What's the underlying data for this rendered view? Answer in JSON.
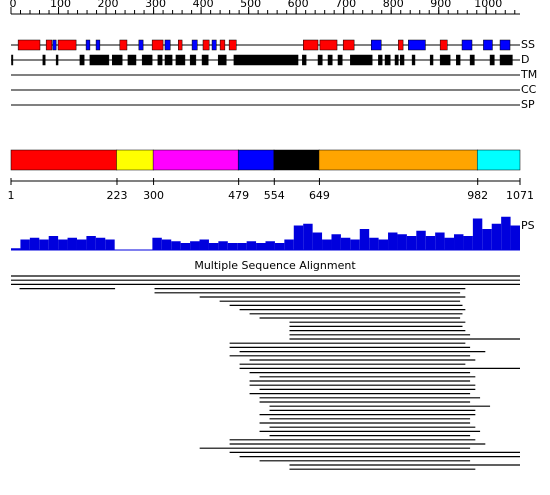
{
  "ruler": {
    "ticks": [
      0,
      100,
      200,
      300,
      400,
      500,
      600,
      700,
      800,
      900,
      1000
    ],
    "minor_step": 20
  },
  "tracks": [
    {
      "label": "SS",
      "segments": [
        {
          "start": 15,
          "end": 61,
          "color": "#ff0000"
        },
        {
          "start": 74,
          "end": 86,
          "color": "#ff0000"
        },
        {
          "start": 99,
          "end": 137,
          "color": "#ff0000"
        },
        {
          "start": 229,
          "end": 244,
          "color": "#ff0000"
        },
        {
          "start": 297,
          "end": 320,
          "color": "#ff0000"
        },
        {
          "start": 352,
          "end": 360,
          "color": "#ff0000"
        },
        {
          "start": 404,
          "end": 417,
          "color": "#ff0000"
        },
        {
          "start": 440,
          "end": 450,
          "color": "#ff0000"
        },
        {
          "start": 459,
          "end": 474,
          "color": "#ff0000"
        },
        {
          "start": 615,
          "end": 646,
          "color": "#ff0000"
        },
        {
          "start": 650,
          "end": 686,
          "color": "#ff0000"
        },
        {
          "start": 699,
          "end": 722,
          "color": "#ff0000"
        },
        {
          "start": 815,
          "end": 825,
          "color": "#ff0000"
        },
        {
          "start": 903,
          "end": 918,
          "color": "#ff0000"
        },
        {
          "start": 88,
          "end": 95,
          "color": "#0000ff"
        },
        {
          "start": 158,
          "end": 166,
          "color": "#0000ff"
        },
        {
          "start": 179,
          "end": 187,
          "color": "#0000ff"
        },
        {
          "start": 269,
          "end": 278,
          "color": "#0000ff"
        },
        {
          "start": 324,
          "end": 335,
          "color": "#0000ff"
        },
        {
          "start": 381,
          "end": 392,
          "color": "#0000ff"
        },
        {
          "start": 423,
          "end": 432,
          "color": "#0000ff"
        },
        {
          "start": 758,
          "end": 779,
          "color": "#0000ff"
        },
        {
          "start": 836,
          "end": 872,
          "color": "#0000ff"
        },
        {
          "start": 949,
          "end": 970,
          "color": "#0000ff"
        },
        {
          "start": 994,
          "end": 1013,
          "color": "#0000ff"
        },
        {
          "start": 1029,
          "end": 1050,
          "color": "#0000ff"
        }
      ]
    },
    {
      "label": "D",
      "segments": [
        {
          "start": 1,
          "end": 4,
          "color": "#000000"
        },
        {
          "start": 67,
          "end": 72,
          "color": "#000000"
        },
        {
          "start": 95,
          "end": 99,
          "color": "#000000"
        },
        {
          "start": 145,
          "end": 154,
          "color": "#000000"
        },
        {
          "start": 166,
          "end": 206,
          "color": "#000000"
        },
        {
          "start": 213,
          "end": 234,
          "color": "#000000"
        },
        {
          "start": 246,
          "end": 263,
          "color": "#000000"
        },
        {
          "start": 276,
          "end": 297,
          "color": "#000000"
        },
        {
          "start": 309,
          "end": 318,
          "color": "#000000"
        },
        {
          "start": 324,
          "end": 339,
          "color": "#000000"
        },
        {
          "start": 347,
          "end": 366,
          "color": "#000000"
        },
        {
          "start": 377,
          "end": 389,
          "color": "#000000"
        },
        {
          "start": 402,
          "end": 415,
          "color": "#000000"
        },
        {
          "start": 436,
          "end": 453,
          "color": "#000000"
        },
        {
          "start": 469,
          "end": 604,
          "color": "#000000"
        },
        {
          "start": 613,
          "end": 621,
          "color": "#000000"
        },
        {
          "start": 646,
          "end": 655,
          "color": "#000000"
        },
        {
          "start": 667,
          "end": 676,
          "color": "#000000"
        },
        {
          "start": 688,
          "end": 697,
          "color": "#000000"
        },
        {
          "start": 714,
          "end": 760,
          "color": "#000000"
        },
        {
          "start": 773,
          "end": 781,
          "color": "#000000"
        },
        {
          "start": 787,
          "end": 798,
          "color": "#000000"
        },
        {
          "start": 808,
          "end": 815,
          "color": "#000000"
        },
        {
          "start": 819,
          "end": 827,
          "color": "#000000"
        },
        {
          "start": 844,
          "end": 850,
          "color": "#000000"
        },
        {
          "start": 882,
          "end": 888,
          "color": "#000000"
        },
        {
          "start": 903,
          "end": 924,
          "color": "#000000"
        },
        {
          "start": 937,
          "end": 945,
          "color": "#000000"
        },
        {
          "start": 966,
          "end": 975,
          "color": "#000000"
        },
        {
          "start": 1008,
          "end": 1017,
          "color": "#000000"
        },
        {
          "start": 1029,
          "end": 1055,
          "color": "#000000"
        }
      ]
    },
    {
      "label": "TM",
      "segments": []
    },
    {
      "label": "CC",
      "segments": []
    },
    {
      "label": "SP",
      "segments": []
    }
  ],
  "domains": {
    "boundaries": [
      1,
      223,
      300,
      479,
      554,
      649,
      982,
      1071
    ],
    "colors": [
      "#ff0000",
      "#ffff00",
      "#ff00ff",
      "#0000ff",
      "#000000",
      "#ffa500",
      "#00ffff"
    ]
  },
  "ps": {
    "label": "PS",
    "color": "#0000dd",
    "ylim": [
      0,
      1
    ],
    "values": [
      0.05,
      0.3,
      0.35,
      0.3,
      0.4,
      0.3,
      0.35,
      0.3,
      0.4,
      0.35,
      0.3,
      null,
      null,
      null,
      null,
      0.35,
      0.3,
      0.25,
      0.2,
      0.25,
      0.3,
      0.2,
      0.25,
      0.2,
      0.2,
      0.25,
      0.2,
      0.25,
      0.2,
      0.3,
      0.7,
      0.75,
      0.5,
      0.3,
      0.45,
      0.35,
      0.3,
      0.6,
      0.35,
      0.3,
      0.5,
      0.45,
      0.4,
      0.55,
      0.4,
      0.5,
      0.35,
      0.45,
      0.4,
      0.9,
      0.6,
      0.75,
      0.95,
      0.7
    ]
  },
  "alignment": {
    "title": "Multiple Sequence Alignment",
    "rows": [
      [
        [
          1,
          1071
        ]
      ],
      [
        [
          1,
          1071
        ]
      ],
      [
        [
          1,
          1071
        ]
      ],
      [
        [
          19,
          219
        ],
        [
          303,
          956
        ]
      ],
      [
        [
          303,
          945
        ]
      ],
      [
        [
          398,
          956
        ]
      ],
      [
        [
          440,
          945
        ]
      ],
      [
        [
          461,
          950
        ]
      ],
      [
        [
          482,
          956
        ]
      ],
      [
        [
          503,
          950
        ]
      ],
      [
        [
          524,
          945
        ]
      ],
      [
        [
          587,
          956
        ]
      ],
      [
        [
          587,
          950
        ]
      ],
      [
        [
          587,
          956
        ]
      ],
      [
        [
          587,
          966
        ]
      ],
      [
        [
          587,
          1071
        ]
      ],
      [
        [
          461,
          956
        ]
      ],
      [
        [
          461,
          966
        ]
      ],
      [
        [
          482,
          998
        ]
      ],
      [
        [
          461,
          966
        ]
      ],
      [
        [
          503,
          977
        ]
      ],
      [
        [
          482,
          956
        ]
      ],
      [
        [
          482,
          1071
        ]
      ],
      [
        [
          503,
          966
        ]
      ],
      [
        [
          524,
          977
        ]
      ],
      [
        [
          503,
          966
        ]
      ],
      [
        [
          503,
          977
        ]
      ],
      [
        [
          524,
          977
        ]
      ],
      [
        [
          503,
          966
        ]
      ],
      [
        [
          524,
          987
        ]
      ],
      [
        [
          524,
          966
        ]
      ],
      [
        [
          545,
          1008
        ]
      ],
      [
        [
          545,
          977
        ]
      ],
      [
        [
          524,
          977
        ]
      ],
      [
        [
          545,
          966
        ]
      ],
      [
        [
          524,
          966
        ]
      ],
      [
        [
          545,
          977
        ]
      ],
      [
        [
          524,
          987
        ]
      ],
      [
        [
          545,
          966
        ]
      ],
      [
        [
          461,
          977
        ]
      ],
      [
        [
          461,
          998
        ]
      ],
      [
        [
          398,
          966
        ]
      ],
      [
        [
          461,
          1071
        ]
      ],
      [
        [
          482,
          1071
        ]
      ],
      [
        [
          524,
          966
        ]
      ],
      [
        [
          587,
          1071
        ]
      ],
      [
        [
          587,
          977
        ]
      ]
    ]
  }
}
